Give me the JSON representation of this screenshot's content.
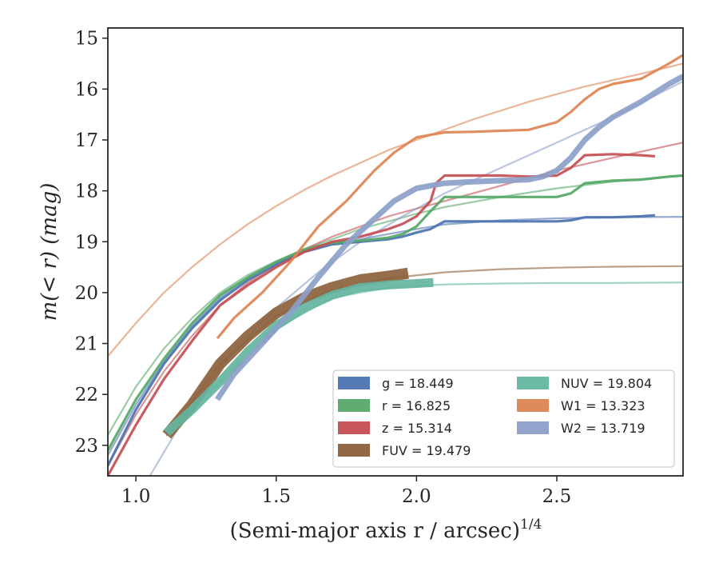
{
  "chart_data": {
    "type": "line",
    "xlabel": "(Semi-major axis r / arcsec)",
    "xlabel_superscript": "1/4",
    "ylabel": "m(< r) (mag)",
    "xlim": [
      0.9,
      2.95
    ],
    "ylim": [
      23.6,
      14.8
    ],
    "y_inverted": true,
    "x_ticks": [
      1.0,
      1.5,
      2.0,
      2.5
    ],
    "x_tick_labels": [
      "1.0",
      "1.5",
      "2.0",
      "2.5"
    ],
    "y_ticks": [
      15,
      16,
      17,
      18,
      19,
      20,
      21,
      22,
      23
    ],
    "y_tick_labels": [
      "15",
      "16",
      "17",
      "18",
      "19",
      "20",
      "21",
      "22",
      "23"
    ],
    "grid": false,
    "legend_position": "lower-right",
    "legend_columns": 2,
    "series": [
      {
        "name": "g",
        "legend_label": "g = 18.449",
        "color": "#4c72b0",
        "x": [
          0.9,
          1.0,
          1.1,
          1.2,
          1.3,
          1.4,
          1.5,
          1.6,
          1.7,
          1.8,
          1.9,
          1.95,
          2.0,
          2.05,
          2.1,
          2.2,
          2.3,
          2.4,
          2.5,
          2.55,
          2.6,
          2.7,
          2.8,
          2.85
        ],
        "y": [
          23.4,
          22.3,
          21.4,
          20.7,
          20.15,
          19.75,
          19.45,
          19.2,
          19.05,
          19.0,
          18.95,
          18.9,
          18.82,
          18.75,
          18.6,
          18.6,
          18.6,
          18.6,
          18.6,
          18.58,
          18.52,
          18.52,
          18.5,
          18.48
        ],
        "model_x": [
          0.9,
          1.0,
          1.1,
          1.2,
          1.3,
          1.4,
          1.5,
          1.6,
          1.7,
          1.8,
          1.9,
          2.0,
          2.1,
          2.3,
          2.5,
          2.7,
          2.95
        ],
        "model_y": [
          23.2,
          22.2,
          21.35,
          20.65,
          20.1,
          19.7,
          19.4,
          19.2,
          19.05,
          18.95,
          18.85,
          18.75,
          18.66,
          18.58,
          18.54,
          18.52,
          18.51
        ]
      },
      {
        "name": "r",
        "legend_label": "r = 16.825",
        "color": "#55a868",
        "x": [
          0.9,
          1.0,
          1.1,
          1.2,
          1.3,
          1.4,
          1.5,
          1.6,
          1.7,
          1.8,
          1.9,
          1.95,
          2.0,
          2.05,
          2.1,
          2.2,
          2.3,
          2.4,
          2.5,
          2.55,
          2.6,
          2.7,
          2.8,
          2.9,
          2.95
        ],
        "y": [
          23.1,
          22.1,
          21.3,
          20.6,
          20.05,
          19.7,
          19.4,
          19.15,
          19.02,
          18.98,
          18.92,
          18.85,
          18.7,
          18.4,
          18.12,
          18.12,
          18.12,
          18.12,
          18.12,
          18.05,
          17.85,
          17.8,
          17.78,
          17.72,
          17.7
        ],
        "model_x": [
          0.9,
          1.0,
          1.1,
          1.2,
          1.3,
          1.4,
          1.5,
          1.6,
          1.7,
          1.8,
          1.9,
          2.0,
          2.1,
          2.3,
          2.5,
          2.7,
          2.95
        ],
        "model_y": [
          22.8,
          21.85,
          21.1,
          20.5,
          20.0,
          19.65,
          19.38,
          19.15,
          18.95,
          18.75,
          18.6,
          18.45,
          18.32,
          18.12,
          17.95,
          17.82,
          17.7
        ]
      },
      {
        "name": "z",
        "legend_label": "z = 15.314",
        "color": "#c44e52",
        "x": [
          0.9,
          1.0,
          1.1,
          1.2,
          1.3,
          1.4,
          1.5,
          1.6,
          1.7,
          1.8,
          1.9,
          1.95,
          2.0,
          2.05,
          2.07,
          2.1,
          2.2,
          2.3,
          2.4,
          2.5,
          2.55,
          2.6,
          2.7,
          2.8,
          2.85
        ],
        "y": [
          23.6,
          22.6,
          21.7,
          20.95,
          20.25,
          19.85,
          19.5,
          19.2,
          19.0,
          18.9,
          18.75,
          18.65,
          18.5,
          18.2,
          17.85,
          17.7,
          17.7,
          17.7,
          17.72,
          17.7,
          17.55,
          17.3,
          17.28,
          17.3,
          17.32
        ],
        "model_x": [
          0.9,
          1.0,
          1.1,
          1.2,
          1.3,
          1.4,
          1.5,
          1.6,
          1.7,
          1.8,
          1.9,
          2.0,
          2.1,
          2.3,
          2.5,
          2.7,
          2.95
        ],
        "model_y": [
          23.4,
          22.4,
          21.55,
          20.85,
          20.25,
          19.8,
          19.45,
          19.15,
          18.9,
          18.7,
          18.5,
          18.35,
          18.2,
          17.9,
          17.6,
          17.35,
          17.05
        ]
      },
      {
        "name": "FUV",
        "legend_label": "FUV = 19.479",
        "color": "#8c613c",
        "x": [
          1.11,
          1.2,
          1.3,
          1.4,
          1.5,
          1.6,
          1.7,
          1.8,
          1.9,
          1.97
        ],
        "y": [
          22.8,
          22.2,
          21.4,
          20.85,
          20.4,
          20.1,
          19.9,
          19.75,
          19.68,
          19.62
        ],
        "model_x": [
          1.11,
          1.3,
          1.5,
          1.7,
          1.9,
          2.1,
          2.3,
          2.5,
          2.7,
          2.95
        ],
        "model_y": [
          22.8,
          21.4,
          20.45,
          19.95,
          19.72,
          19.6,
          19.54,
          19.51,
          19.49,
          19.48
        ]
      },
      {
        "name": "NUV",
        "legend_label": "NUV = 19.804",
        "color": "#64b5a0",
        "x": [
          1.11,
          1.2,
          1.3,
          1.4,
          1.5,
          1.6,
          1.7,
          1.8,
          1.9,
          2.0,
          2.06
        ],
        "y": [
          22.75,
          22.3,
          21.75,
          21.15,
          20.65,
          20.3,
          20.05,
          19.9,
          19.85,
          19.82,
          19.8
        ],
        "model_x": [
          1.11,
          1.3,
          1.5,
          1.7,
          1.9,
          2.1,
          2.3,
          2.5,
          2.7,
          2.95
        ],
        "model_y": [
          22.75,
          21.75,
          20.7,
          20.1,
          19.9,
          19.84,
          19.82,
          19.81,
          19.81,
          19.8
        ]
      },
      {
        "name": "W1",
        "legend_label": "W1 = 13.323",
        "color": "#dd8452",
        "x": [
          1.29,
          1.35,
          1.45,
          1.55,
          1.65,
          1.75,
          1.85,
          1.92,
          2.0,
          2.1,
          2.2,
          2.3,
          2.4,
          2.5,
          2.55,
          2.6,
          2.65,
          2.7,
          2.8,
          2.9,
          2.95
        ],
        "y": [
          20.9,
          20.5,
          20.0,
          19.4,
          18.7,
          18.2,
          17.6,
          17.25,
          16.95,
          16.85,
          16.84,
          16.82,
          16.8,
          16.65,
          16.45,
          16.2,
          16.0,
          15.9,
          15.8,
          15.5,
          15.33
        ],
        "model_x": [
          0.9,
          1.0,
          1.1,
          1.2,
          1.3,
          1.4,
          1.5,
          1.6,
          1.7,
          1.8,
          1.9,
          2.0,
          2.2,
          2.4,
          2.6,
          2.8,
          2.95
        ],
        "model_y": [
          21.25,
          20.6,
          20.0,
          19.5,
          19.05,
          18.65,
          18.3,
          17.98,
          17.7,
          17.45,
          17.2,
          17.0,
          16.6,
          16.25,
          15.95,
          15.7,
          15.5
        ]
      },
      {
        "name": "W2",
        "legend_label": "W2 = 13.719",
        "color": "#8c9fc8",
        "x": [
          1.29,
          1.35,
          1.45,
          1.55,
          1.65,
          1.75,
          1.85,
          1.92,
          2.0,
          2.1,
          2.2,
          2.3,
          2.35,
          2.4,
          2.45,
          2.5,
          2.55,
          2.6,
          2.65,
          2.7,
          2.8,
          2.9,
          2.95
        ],
        "y": [
          22.1,
          21.6,
          21.0,
          20.4,
          19.7,
          19.05,
          18.55,
          18.2,
          17.95,
          17.85,
          17.82,
          17.8,
          17.79,
          17.78,
          17.72,
          17.6,
          17.35,
          17.0,
          16.75,
          16.55,
          16.25,
          15.9,
          15.75
        ],
        "model_x": [
          1.05,
          1.2,
          1.35,
          1.5,
          1.65,
          1.8,
          1.95,
          2.1,
          2.3,
          2.5,
          2.7,
          2.95
        ],
        "model_y": [
          23.6,
          22.2,
          21.15,
          20.3,
          19.6,
          19.0,
          18.5,
          18.05,
          17.55,
          17.05,
          16.55,
          15.85
        ]
      }
    ]
  }
}
